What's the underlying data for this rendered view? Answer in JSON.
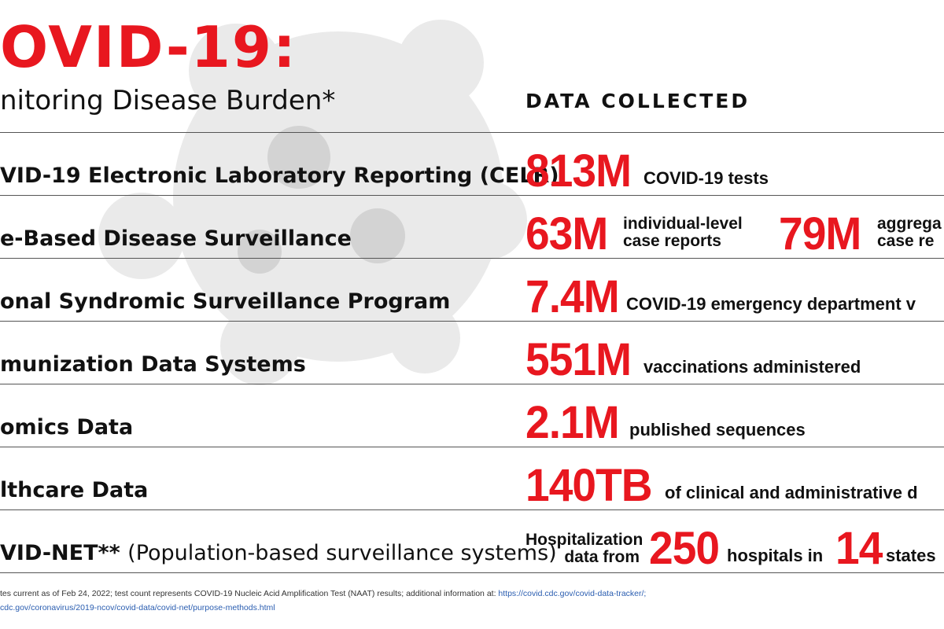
{
  "header": {
    "title": "OVID-19:",
    "subtitle": "nitoring Disease Burden*",
    "column_heading": "DATA COLLECTED"
  },
  "rows": [
    {
      "system": "VID-19 Electronic Laboratory Reporting (CELR)",
      "figure": "813M",
      "note": "COVID-19 tests"
    },
    {
      "system": "e-Based Disease Surveillance",
      "figure": "63M",
      "note_lines": [
        "individual-level",
        "case reports"
      ],
      "figure2": "79M",
      "note2_lines": [
        "aggrega",
        "case re"
      ]
    },
    {
      "system": "onal Syndromic Surveillance Program",
      "figure": "7.4M",
      "note": "COVID-19 emergency department v"
    },
    {
      "system": "munization Data Systems",
      "figure": "551M",
      "note": "vaccinations administered"
    },
    {
      "system": "omics Data",
      "figure": "2.1M",
      "note": "published sequences"
    },
    {
      "system": "lthcare Data",
      "figure": "140TB",
      "note": "of clinical and administrative d"
    },
    {
      "system": "VID-NET**",
      "system_detail": "(Population-based surveillance systems)",
      "pre_lines": [
        "Hospitalization",
        "data from"
      ],
      "figure": "250",
      "note": "hospitals in",
      "figure2": "14",
      "note2": "states"
    }
  ],
  "footnote": {
    "line1": "tes current as of Feb 24, 2022; test count represents COVID-19 Nucleic Acid Amplification Test (NAAT) results; additional information at:",
    "link1": " https://covid.cdc.gov/covid-data-tracker/;",
    "line2": "cdc.gov/coronavirus/2019-ncov/covid-data/covid-net/purpose-methods.html"
  }
}
